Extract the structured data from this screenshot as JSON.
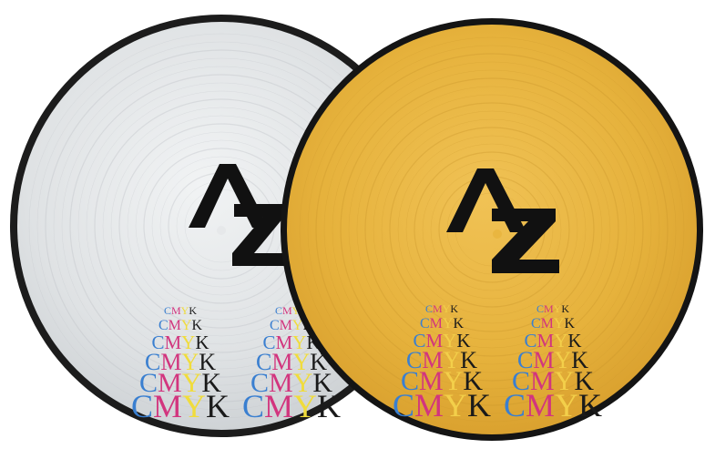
{
  "scene": {
    "description_label": "",
    "background": "#ffffff"
  },
  "records": [
    {
      "name": "silver-record",
      "disc_color": "#e6e8ea",
      "rim_color": "#1c1c1c",
      "logo_text": "AZ",
      "logo_color": "#111111",
      "cmyk_word": "CMYK"
    },
    {
      "name": "gold-record",
      "disc_color": "#e9b640",
      "rim_color": "#141414",
      "logo_text": "AZ",
      "logo_color": "#111111",
      "cmyk_word": "CMYK"
    }
  ],
  "cmyk_colors": {
    "C": "#3a7fd0",
    "M": "#d2357e",
    "Y": "#f0dc3c",
    "K": "#1a1a1a"
  }
}
